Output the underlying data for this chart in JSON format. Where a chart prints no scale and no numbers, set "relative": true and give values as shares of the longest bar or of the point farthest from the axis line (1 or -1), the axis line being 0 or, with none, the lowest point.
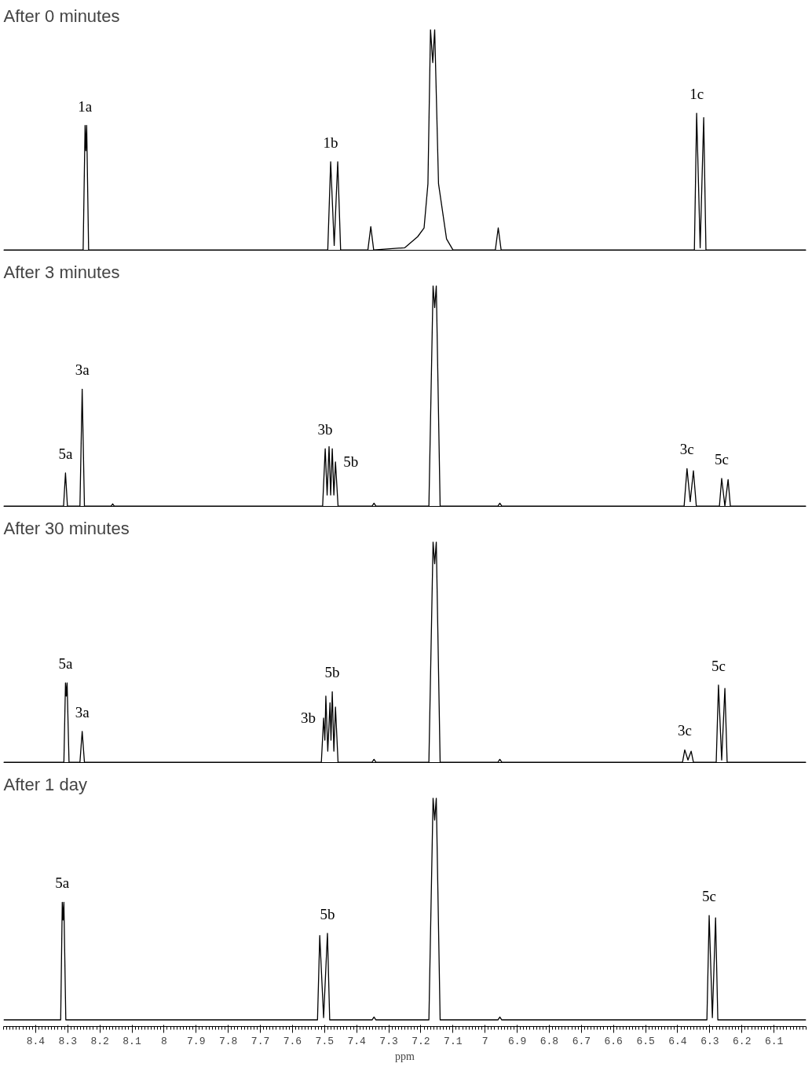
{
  "chart_data": [
    {
      "type": "line",
      "title": "After 0 minutes",
      "relative": true,
      "xlim": [
        8.5,
        6.0
      ],
      "tick_labels": false,
      "series": [
        {
          "color": "#000000",
          "x": [
            8.5,
            8.252,
            8.246,
            8.2435,
            8.241,
            8.235,
            7.49,
            7.481,
            7.47,
            7.459,
            7.45,
            7.365,
            7.356,
            7.347,
            7.25,
            7.21,
            7.19,
            7.178,
            7.17,
            7.163,
            7.157,
            7.145,
            7.12,
            7.1,
            6.968,
            6.959,
            6.95,
            6.348,
            6.341,
            6.33,
            6.319,
            6.312,
            6.0
          ],
          "values": [
            0,
            0,
            0.565,
            0.45,
            0.565,
            0,
            0,
            0.4,
            0.02,
            0.4,
            0,
            0,
            0.106,
            0,
            0.01,
            0.06,
            0.1,
            0.3,
            1,
            0.85,
            1,
            0.3,
            0.05,
            0,
            0,
            0.1,
            0,
            0,
            0.62,
            0.01,
            0.6,
            0,
            0
          ]
        }
      ],
      "annotations": [
        {
          "text": "1a",
          "x": 8.246,
          "y": 0.565
        },
        {
          "text": "1b",
          "x": 7.481,
          "y": 0.4
        },
        {
          "text": "1c",
          "x": 6.341,
          "y": 0.62
        }
      ]
    },
    {
      "type": "line",
      "title": "After 3 minutes",
      "relative": true,
      "xlim": [
        8.5,
        6.0
      ],
      "tick_labels": false,
      "series": [
        {
          "color": "#000000",
          "x": [
            8.5,
            8.313,
            8.307,
            8.301,
            8.262,
            8.255,
            8.248,
            8.165,
            8.16,
            8.155,
            7.506,
            7.498,
            7.492,
            7.486,
            7.481,
            7.476,
            7.471,
            7.466,
            7.458,
            7.352,
            7.346,
            7.34,
            7.175,
            7.162,
            7.157,
            7.152,
            7.14,
            6.96,
            6.954,
            6.948,
            6.38,
            6.371,
            6.361,
            6.351,
            6.342,
            6.27,
            6.263,
            6.253,
            6.243,
            6.236,
            6.0
          ],
          "values": [
            0,
            0,
            0.15,
            0,
            0,
            0.53,
            0,
            0,
            0.01,
            0,
            0,
            0.26,
            0.05,
            0.27,
            0.05,
            0.26,
            0.05,
            0.2,
            0,
            0,
            0.013,
            0,
            0,
            1,
            0.9,
            1,
            0,
            0,
            0.013,
            0,
            0,
            0.17,
            0.02,
            0.16,
            0,
            0,
            0.125,
            0,
            0.12,
            0,
            0
          ]
        }
      ],
      "annotations": [
        {
          "text": "3a",
          "x": 8.255,
          "y": 0.53
        },
        {
          "text": "3b",
          "x": 7.498,
          "y": 0.26
        },
        {
          "text": "3c",
          "x": 6.371,
          "y": 0.17
        },
        {
          "text": "5a",
          "x": 8.307,
          "y": 0.15
        },
        {
          "text": "5b",
          "x": 7.466,
          "y": 0.2
        },
        {
          "text": "5c",
          "x": 6.263,
          "y": 0.125
        }
      ]
    },
    {
      "type": "line",
      "title": "After 30 minutes",
      "relative": true,
      "xlim": [
        8.5,
        6.0
      ],
      "tick_labels": false,
      "series": [
        {
          "color": "#000000",
          "x": [
            8.5,
            8.312,
            8.307,
            8.3045,
            8.302,
            8.296,
            8.262,
            8.255,
            8.248,
            7.51,
            7.503,
            7.499,
            7.496,
            7.49,
            7.483,
            7.48,
            7.476,
            7.471,
            7.466,
            7.458,
            7.352,
            7.346,
            7.34,
            7.175,
            7.162,
            7.157,
            7.152,
            7.14,
            6.96,
            6.954,
            6.948,
            6.385,
            6.378,
            6.368,
            6.358,
            6.351,
            6.28,
            6.273,
            6.263,
            6.253,
            6.246,
            6.0
          ],
          "values": [
            0,
            0,
            0.36,
            0.3,
            0.36,
            0,
            0,
            0.14,
            0,
            0,
            0.2,
            0.1,
            0.3,
            0.05,
            0.27,
            0.1,
            0.32,
            0.05,
            0.25,
            0,
            0,
            0.013,
            0,
            0,
            1,
            0.9,
            1,
            0,
            0,
            0.013,
            0,
            0,
            0.056,
            0.01,
            0.05,
            0,
            0,
            0.35,
            0.01,
            0.335,
            0,
            0
          ]
        }
      ],
      "annotations": [
        {
          "text": "5a",
          "x": 8.307,
          "y": 0.36
        },
        {
          "text": "3a",
          "x": 8.255,
          "y": 0.14
        },
        {
          "text": "3b",
          "x": 7.503,
          "y": 0.2
        },
        {
          "text": "5b",
          "x": 7.476,
          "y": 0.32
        },
        {
          "text": "3c",
          "x": 6.378,
          "y": 0.056
        },
        {
          "text": "5c",
          "x": 6.273,
          "y": 0.35
        }
      ]
    },
    {
      "type": "line",
      "title": "After 1 day",
      "relative": true,
      "xlim": [
        8.5,
        6.0
      ],
      "xlabel": "ppm",
      "tick_labels": "x",
      "xticks": [
        8.4,
        8.3,
        8.2,
        8.1,
        8.0,
        7.9,
        7.8,
        7.7,
        7.6,
        7.5,
        7.4,
        7.3,
        7.2,
        7.1,
        7.0,
        6.9,
        6.8,
        6.7,
        6.6,
        6.5,
        6.4,
        6.3,
        6.2,
        6.1
      ],
      "series": [
        {
          "color": "#000000",
          "x": [
            8.5,
            8.322,
            8.317,
            8.3145,
            8.312,
            8.306,
            7.522,
            7.515,
            7.503,
            7.491,
            7.484,
            7.352,
            7.346,
            7.34,
            7.175,
            7.162,
            7.157,
            7.152,
            7.14,
            6.96,
            6.954,
            6.948,
            6.309,
            6.302,
            6.292,
            6.282,
            6.275,
            6.0
          ],
          "values": [
            0,
            0,
            0.53,
            0.45,
            0.53,
            0,
            0,
            0.38,
            0.01,
            0.39,
            0,
            0,
            0.013,
            0,
            0,
            1,
            0.9,
            1,
            0,
            0,
            0.013,
            0,
            0,
            0.47,
            0.01,
            0.46,
            0,
            0
          ]
        }
      ],
      "annotations": [
        {
          "text": "5a",
          "x": 8.317,
          "y": 0.53
        },
        {
          "text": "5b",
          "x": 7.491,
          "y": 0.39
        },
        {
          "text": "5c",
          "x": 6.302,
          "y": 0.47
        }
      ]
    }
  ]
}
